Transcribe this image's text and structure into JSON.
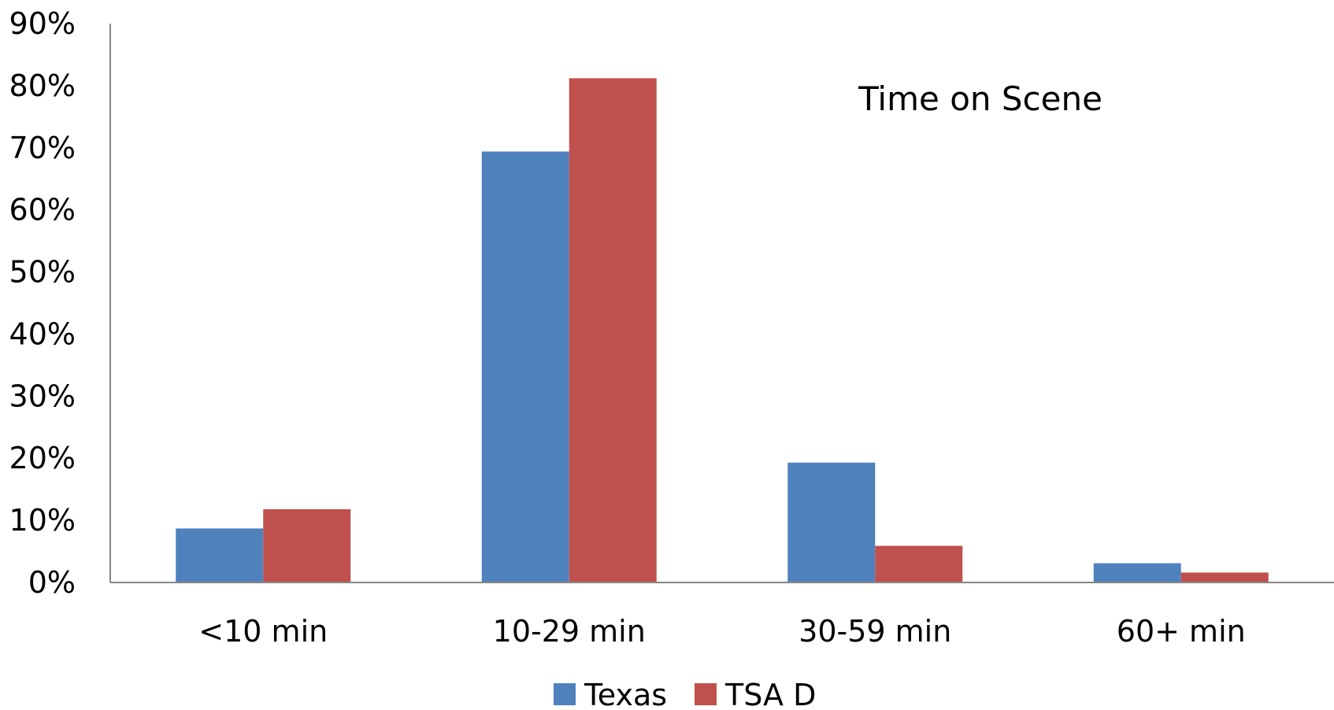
{
  "chart_data": {
    "type": "bar",
    "title": "Time on Scene",
    "categories": [
      "<10 min",
      "10-29 min",
      "30-59 min",
      "60+ min"
    ],
    "series": [
      {
        "name": "Texas",
        "color": "#4f81bd",
        "values": [
          8.7,
          69.4,
          19.3,
          3.1
        ]
      },
      {
        "name": "TSA D",
        "color": "#c0504d",
        "values": [
          11.8,
          81.2,
          5.9,
          1.6
        ]
      }
    ],
    "ylim": [
      0,
      90
    ],
    "yticks": [
      0,
      10,
      20,
      30,
      40,
      50,
      60,
      70,
      80,
      90
    ],
    "ytick_labels": [
      "0%",
      "10%",
      "20%",
      "30%",
      "40%",
      "50%",
      "60%",
      "70%",
      "80%",
      "90%"
    ],
    "grid": false,
    "legend_position": "bottom"
  }
}
